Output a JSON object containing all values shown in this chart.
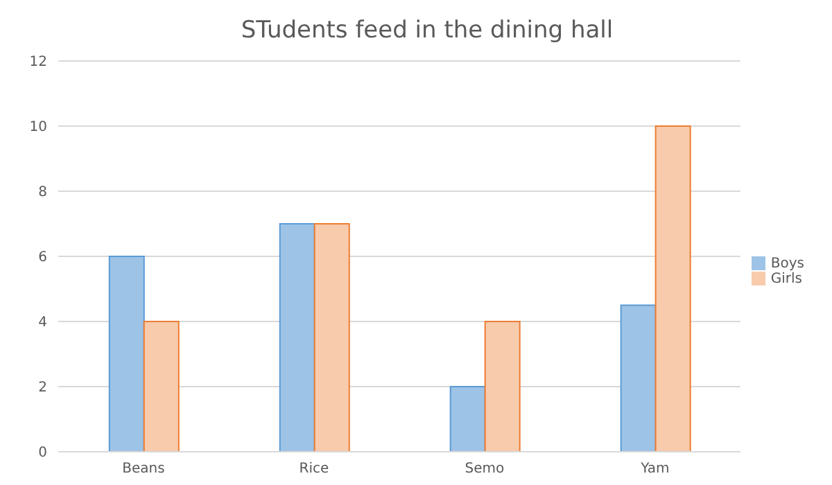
{
  "chart_data": {
    "type": "bar",
    "title": "STudents feed in the dining hall",
    "categories": [
      "Beans",
      "Rice",
      "Semo",
      "Yam"
    ],
    "series": [
      {
        "name": "Boys",
        "color": "#9dc3e6",
        "values": [
          6,
          7,
          2,
          4.5
        ]
      },
      {
        "name": "Girls",
        "color": "#f8cbad",
        "values": [
          4,
          7,
          4,
          10
        ]
      }
    ],
    "ylim": [
      0,
      12
    ],
    "yticks": [
      0,
      2,
      4,
      6,
      8,
      10,
      12
    ],
    "grid": "y",
    "legend": "right"
  }
}
